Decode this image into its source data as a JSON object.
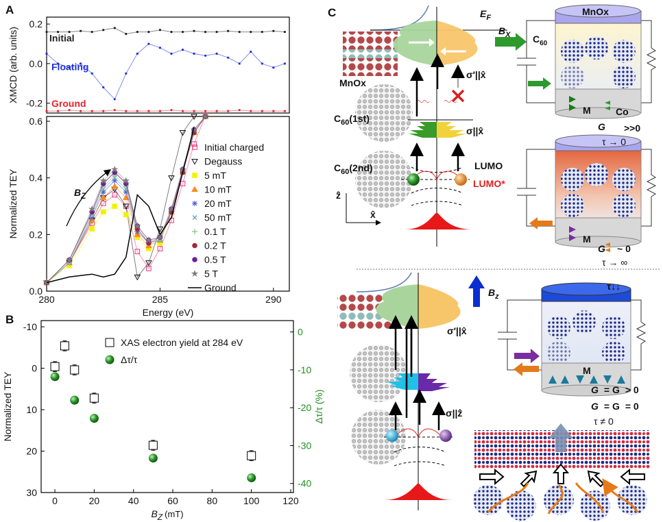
{
  "panels": [
    "A",
    "B",
    "C"
  ],
  "chart_data": [
    {
      "type": "line",
      "ylabel": "XMCD (arb. units)",
      "x": [
        280,
        280.5,
        281,
        281.5,
        282,
        282.5,
        283,
        283.5,
        284,
        284.5,
        285,
        285.5,
        286,
        286.5,
        287,
        287.5,
        288,
        288.5,
        289,
        289.5,
        290,
        290.5
      ],
      "xlim": [
        280,
        290.7
      ],
      "ylim": [
        -0.25,
        0.235
      ],
      "yticks": [
        0.2,
        {
          "value": 0,
          "label": "0.0"
        },
        -0.2
      ],
      "series": [
        {
          "name": "Initial",
          "color": "#222222",
          "marker": "dot",
          "values": [
            0.16,
            0.16,
            0.16,
            0.165,
            0.16,
            0.17,
            0.18,
            0.15,
            0.16,
            0.16,
            0.17,
            0.16,
            0.16,
            0.165,
            0.16,
            0.16,
            0.165,
            0.16,
            0.16,
            0.16,
            0.165,
            0.16
          ]
        },
        {
          "name": "Floating",
          "color": "#1c2fd8",
          "marker": "dot",
          "values": [
            0.05,
            0.0,
            -0.02,
            0.0,
            -0.05,
            -0.12,
            -0.18,
            -0.05,
            0.05,
            0.1,
            0.08,
            0.05,
            0.07,
            0.05,
            0.04,
            0.05,
            0.03,
            0.0,
            0.06,
            0.0,
            -0.02,
            0.0
          ]
        },
        {
          "name": "Ground",
          "color": "#e8202a",
          "marker": "dot",
          "values": [
            -0.24,
            -0.24,
            -0.235,
            -0.24,
            -0.24,
            -0.24,
            -0.235,
            -0.24,
            -0.24,
            -0.24,
            -0.24,
            -0.235,
            -0.24,
            -0.24,
            -0.24,
            -0.24,
            -0.24,
            -0.235,
            -0.24,
            -0.24,
            -0.24,
            -0.24
          ]
        }
      ]
    },
    {
      "type": "line",
      "xlabel": "Energy (eV)",
      "ylabel": "Normalized TEY",
      "annotation": "B",
      "annotation_sub": "Z",
      "x": [
        280,
        281,
        282,
        282.5,
        283,
        283.5,
        284,
        284.5,
        285,
        285.5,
        286,
        286.5,
        287
      ],
      "xlim": [
        280,
        290.7
      ],
      "ylim": [
        0,
        0.617
      ],
      "xticks": [
        280,
        285,
        290
      ],
      "yticks": [
        {
          "value": 0,
          "label": "0.0"
        },
        0.2,
        0.4,
        0.6
      ],
      "legend": "center right",
      "series": [
        {
          "name": "Initial charged",
          "color": "#f0307c",
          "marker": "square",
          "filled": false,
          "values": [
            0.03,
            0.1,
            0.24,
            0.31,
            0.34,
            0.3,
            0.14,
            0.08,
            0.15,
            0.25,
            0.38,
            0.52,
            0.62
          ]
        },
        {
          "name": "Degauss",
          "color": "#111111",
          "marker": "triangle-down",
          "filled": false,
          "values": [
            0.03,
            0.1,
            0.25,
            0.33,
            0.36,
            0.3,
            0.05,
            0.1,
            0.22,
            0.4,
            0.56,
            0.617,
            null
          ]
        },
        {
          "name": "5 mT",
          "color": "#f2f200",
          "marker": "square",
          "filled": true,
          "values": [
            0.03,
            0.09,
            0.22,
            0.28,
            0.3,
            0.27,
            0.19,
            0.15,
            0.17,
            0.28,
            0.42,
            0.56,
            0.617
          ]
        },
        {
          "name": "10 mT",
          "color": "#ff8a1c",
          "marker": "triangle",
          "filled": true,
          "values": [
            0.03,
            0.1,
            0.25,
            0.33,
            0.37,
            0.33,
            0.2,
            0.16,
            0.18,
            0.28,
            0.42,
            0.56,
            0.617
          ]
        },
        {
          "name": "20 mT",
          "color": "#4a57d4",
          "marker": "asterisk",
          "filled": true,
          "values": [
            0.03,
            0.1,
            0.26,
            0.35,
            0.39,
            0.35,
            0.21,
            0.17,
            0.18,
            0.28,
            0.42,
            0.56,
            0.617
          ]
        },
        {
          "name": "50 mT",
          "color": "#6aa3c6",
          "marker": "x",
          "filled": true,
          "values": [
            0.03,
            0.1,
            0.27,
            0.36,
            0.4,
            0.36,
            0.22,
            0.17,
            0.18,
            0.28,
            0.42,
            0.56,
            0.617
          ]
        },
        {
          "name": "0.1 T",
          "color": "#8fcf8a",
          "marker": "plus",
          "filled": true,
          "values": [
            0.03,
            0.1,
            0.27,
            0.37,
            0.41,
            0.37,
            0.22,
            0.17,
            0.18,
            0.28,
            0.42,
            0.56,
            0.617
          ]
        },
        {
          "name": "0.2 T",
          "color": "#a82638",
          "marker": "circle",
          "filled": true,
          "values": [
            0.03,
            0.11,
            0.28,
            0.38,
            0.42,
            0.38,
            0.22,
            0.17,
            0.19,
            0.28,
            0.42,
            0.56,
            0.617
          ]
        },
        {
          "name": "0.5 T",
          "color": "#6a1f9a",
          "marker": "circle",
          "filled": true,
          "values": [
            0.03,
            0.11,
            0.28,
            0.38,
            0.42,
            0.38,
            0.23,
            0.18,
            0.19,
            0.29,
            0.43,
            0.57,
            0.617
          ]
        },
        {
          "name": "5 T",
          "color": "#7d7d7d",
          "marker": "star",
          "filled": true,
          "values": [
            0.03,
            0.11,
            0.29,
            0.39,
            0.43,
            0.39,
            0.23,
            0.18,
            0.19,
            0.29,
            0.43,
            0.57,
            0.617
          ]
        },
        {
          "name": "Ground",
          "color": "#000000",
          "marker": "none",
          "values": [
            0.03,
            0.05,
            0.06,
            0.05,
            0.06,
            0.12,
            0.34,
            0.3,
            0.2,
            0.26,
            0.42,
            0.58,
            null
          ]
        }
      ]
    },
    {
      "type": "scatter",
      "xlabel": "B",
      "xlabel_sub": "Z",
      "xlabel_unit": "(mT)",
      "ylabel": "Normalized TEY",
      "y2label": "Δτ/τ (%)",
      "y2color": "#1f8f1f",
      "xlim": [
        -7,
        121.4
      ],
      "ylim": [
        30,
        -11.5
      ],
      "y2lim": [
        -42.4,
        3
      ],
      "xticks": [
        0,
        20,
        40,
        60,
        80,
        100,
        120
      ],
      "yticks": [
        -10,
        0,
        10,
        20,
        30
      ],
      "y2ticks": [
        0,
        -10,
        -20,
        -30,
        -40
      ],
      "legend": "upper center",
      "series": [
        {
          "name": "XAS electron yield at 284 eV",
          "color": "#000000",
          "marker": "square",
          "filled": false,
          "x": [
            0,
            5,
            10,
            20,
            50,
            100
          ],
          "values": [
            -0.4,
            -5.4,
            0.4,
            7.2,
            18.6,
            21.1
          ],
          "errors": [
            1.2,
            1.2,
            1.2,
            1.2,
            1.2,
            1.2
          ]
        },
        {
          "name": "Δτ/τ",
          "color": "#1f8f1f",
          "marker": "ball",
          "axis": "y2",
          "x": [
            0,
            10,
            20,
            50,
            100
          ],
          "values": [
            -11.8,
            -18,
            -22.8,
            -33.3,
            -38.5
          ]
        }
      ]
    }
  ],
  "diagram": {
    "ef": "E",
    "ef_sub": "F",
    "bx": "B",
    "bx_sub": "X",
    "mnox_cyl1": "MnOx",
    "c60_cyl": "C",
    "c60_cyl_sub": "60",
    "sigma_prime_1": "σ′||x̂",
    "mnox_left": "MnOx",
    "c60_1st": "C",
    "c60_1st_sub": "60",
    "c60_1st_tail": "(1st)",
    "sigma_1": "σ||x̂",
    "c60_2nd": "C",
    "c60_2nd_sub": "60",
    "c60_2nd_tail": "(2nd)",
    "lumo": "LUMO",
    "lumo_star": "LUMO*",
    "axis_z": "ẑ",
    "axis_x": "x̂",
    "m1": "M",
    "co": "Co",
    "g1": "G",
    "g1_val": ">>0",
    "tau1": "τ → 0",
    "m2": "M",
    "g2": "G",
    "g2_val": "~ 0",
    "tau2": "τ → ∞",
    "bz": "B",
    "bz_sub": "z",
    "sigma_prime_2": "σ′||x̂",
    "tau_down": "τ↓↓",
    "m3": "M",
    "sigma_2": "σ||ẑ",
    "g3": "G",
    "g3_mid": "= G",
    "g3_val": "> 0",
    "g4": "G",
    "g4_mid": "= G",
    "g4_val": "= 0",
    "tau3": "τ ≠ 0"
  }
}
